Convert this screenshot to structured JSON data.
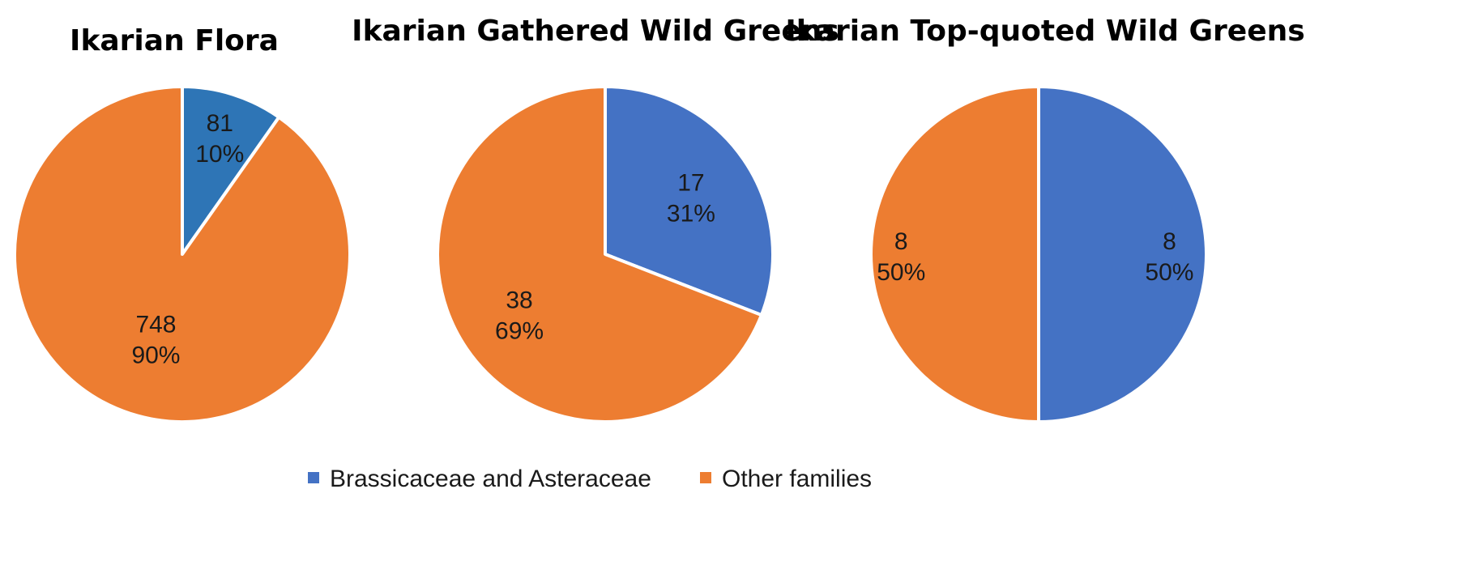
{
  "legend": [
    {
      "label": "Brassicaceae and Asteraceae",
      "color": "#4472C4"
    },
    {
      "label": "Other families",
      "color": "#ED7D31"
    }
  ],
  "chart_data": [
    {
      "type": "pie",
      "title": "Ikarian Flora",
      "categories": [
        "Brassicaceae and Asteraceae",
        "Other families"
      ],
      "values": [
        81,
        748
      ],
      "percent_labels": [
        "10%",
        "90%"
      ],
      "colors": [
        "#2E75B6",
        "#ED7D31"
      ]
    },
    {
      "type": "pie",
      "title": "Ikarian Gathered Wild Greens",
      "categories": [
        "Brassicaceae and Asteraceae",
        "Other families"
      ],
      "values": [
        17,
        38
      ],
      "percent_labels": [
        "31%",
        "69%"
      ],
      "colors": [
        "#4472C4",
        "#ED7D31"
      ]
    },
    {
      "type": "pie",
      "title": "Ikarian Top-quoted Wild Greens",
      "categories": [
        "Brassicaceae and Asteraceae",
        "Other families"
      ],
      "values": [
        8,
        8
      ],
      "percent_labels": [
        "50%",
        "50%"
      ],
      "colors": [
        "#4472C4",
        "#ED7D31"
      ]
    }
  ]
}
